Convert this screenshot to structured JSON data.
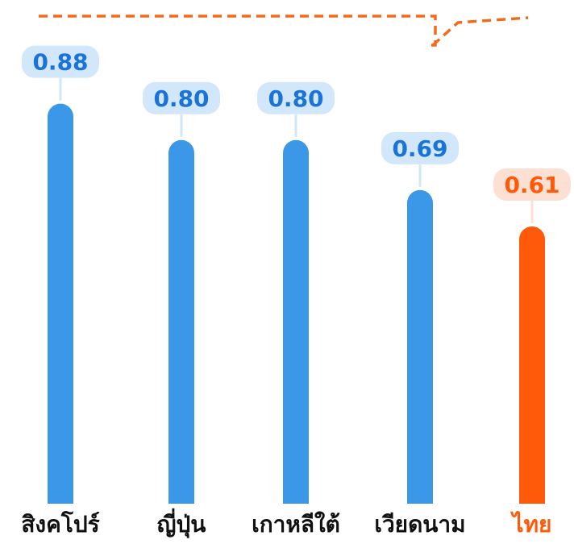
{
  "chart_data": {
    "type": "bar",
    "categories": [
      "สิงคโปร์",
      "ญี่ปุ่น",
      "เกาหลีใต้",
      "เวียดนาม",
      "ไทย"
    ],
    "values": [
      0.88,
      0.8,
      0.8,
      0.69,
      0.61
    ],
    "value_labels": [
      "0.88",
      "0.80",
      "0.80",
      "0.69",
      "0.61"
    ],
    "highlight_category": "ไทย",
    "ylim": [
      0,
      1.0
    ],
    "grid": false,
    "legend": "none",
    "colors": {
      "bar": "#3b97e8",
      "label_bg": "#d3e7fa",
      "label_text": "#1a73d9",
      "highlight_bar": "#ff5a0a",
      "highlight_label_bg": "#fde0d4",
      "highlight_label_text": "#ff5a0a",
      "category_text": "#111111",
      "dashed_line": "#f26a1b"
    }
  }
}
